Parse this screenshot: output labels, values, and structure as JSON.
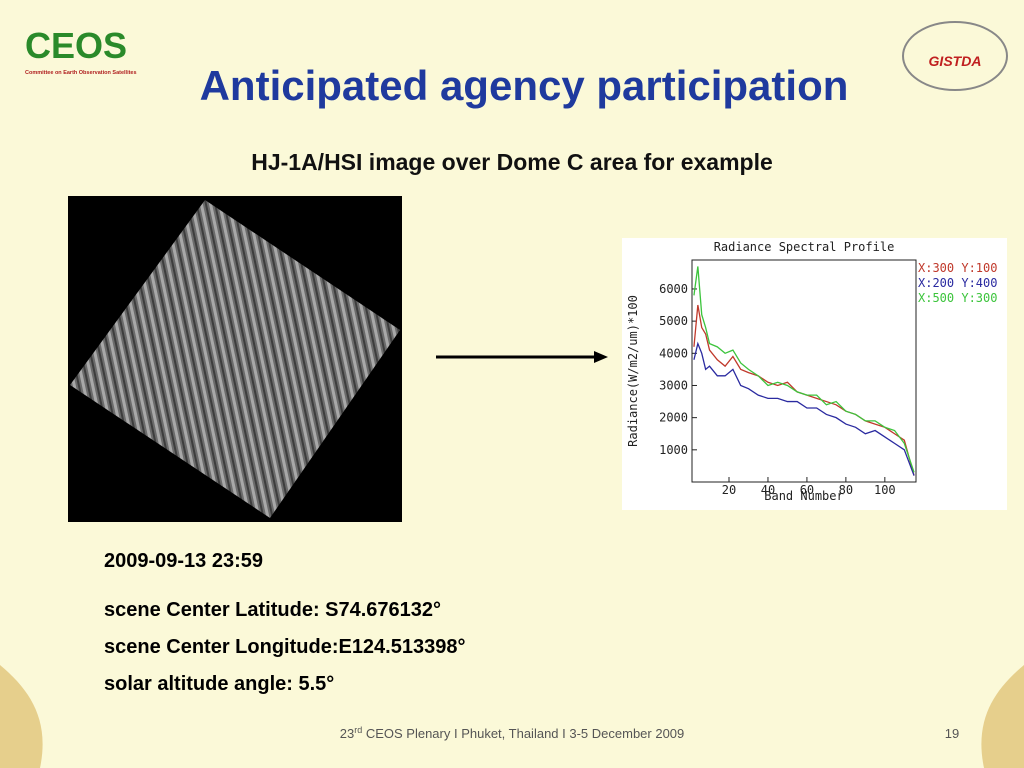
{
  "header": {
    "title": "Anticipated agency participation",
    "subtitle": "HJ-1A/HSI image over Dome C area for example"
  },
  "logos": {
    "left": "CEOS",
    "left_caption": "Committee on Earth Observation Satellites",
    "right": "GISTDA"
  },
  "image_caption": "2009-09-13 23:59",
  "details": [
    "scene Center Latitude: S74.676132°",
    "scene Center Longitude:E124.513398°",
    "solar altitude angle: 5.5°"
  ],
  "footer": {
    "number": "23",
    "suffix": "rd",
    "text": " CEOS Plenary  I Phuket, Thailand I 3-5 December 2009",
    "page": "19"
  },
  "chart_data": {
    "type": "line",
    "title": "Radiance Spectral Profile",
    "x_label": "Band Number",
    "y_label": "Radiance(W/m2/um)*100",
    "x": [
      2,
      4,
      6,
      8,
      10,
      14,
      18,
      22,
      26,
      30,
      35,
      40,
      45,
      50,
      55,
      60,
      65,
      70,
      75,
      80,
      85,
      90,
      95,
      100,
      105,
      110,
      115
    ],
    "series": [
      {
        "name": "X:300 Y:100",
        "color": "#c0392b",
        "values": [
          4200,
          5500,
          4800,
          4600,
          4100,
          3800,
          3600,
          3900,
          3500,
          3400,
          3300,
          3100,
          3000,
          3100,
          2800,
          2700,
          2600,
          2500,
          2400,
          2200,
          2100,
          1900,
          1800,
          1700,
          1500,
          1300,
          200
        ]
      },
      {
        "name": "X:200 Y:400",
        "color": "#2a2aa0",
        "values": [
          3800,
          4300,
          4000,
          3500,
          3600,
          3300,
          3300,
          3500,
          3000,
          2900,
          2700,
          2600,
          2600,
          2500,
          2500,
          2300,
          2300,
          2100,
          2000,
          1800,
          1700,
          1500,
          1600,
          1400,
          1200,
          1000,
          200
        ]
      },
      {
        "name": "X:500 Y:300",
        "color": "#3cc43c",
        "values": [
          5800,
          6700,
          5200,
          4800,
          4300,
          4200,
          4000,
          4100,
          3700,
          3500,
          3300,
          3000,
          3100,
          3000,
          2800,
          2700,
          2700,
          2400,
          2500,
          2200,
          2100,
          1900,
          1900,
          1700,
          1600,
          1200,
          300
        ]
      }
    ],
    "xlim": [
      1,
      116
    ],
    "ylim": [
      0,
      6900
    ],
    "xticks": [
      20,
      40,
      60,
      80,
      100
    ],
    "yticks": [
      1000,
      2000,
      3000,
      4000,
      5000,
      6000
    ]
  }
}
